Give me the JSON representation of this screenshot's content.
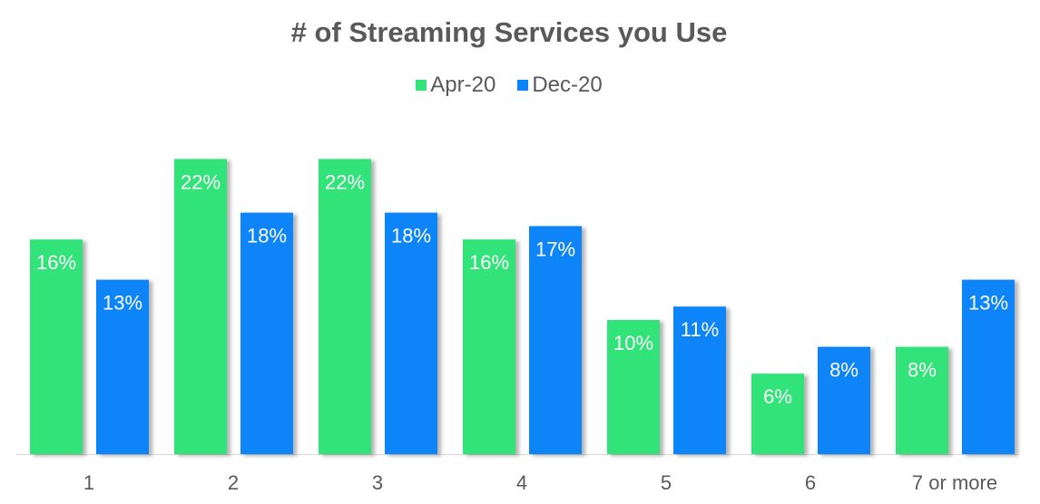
{
  "chart_data": {
    "type": "bar",
    "title": "# of Streaming Services you Use",
    "categories": [
      "1",
      "2",
      "3",
      "4",
      "5",
      "6",
      "7 or more"
    ],
    "series": [
      {
        "name": "Apr-20",
        "color": "#33e37a",
        "values": [
          16,
          22,
          22,
          16,
          10,
          6,
          8
        ],
        "labels": [
          "16%",
          "22%",
          "22%",
          "16%",
          "10%",
          "6%",
          "8%"
        ]
      },
      {
        "name": "Dec-20",
        "color": "#0a84f7",
        "values": [
          13,
          18,
          18,
          17,
          11,
          8,
          13
        ],
        "labels": [
          "13%",
          "18%",
          "18%",
          "17%",
          "11%",
          "8%",
          "13%"
        ]
      }
    ],
    "xlabel": "",
    "ylabel": "",
    "ylim": [
      0,
      22
    ],
    "grid": false,
    "legend_position": "top-center",
    "data_label_unit": "%"
  }
}
